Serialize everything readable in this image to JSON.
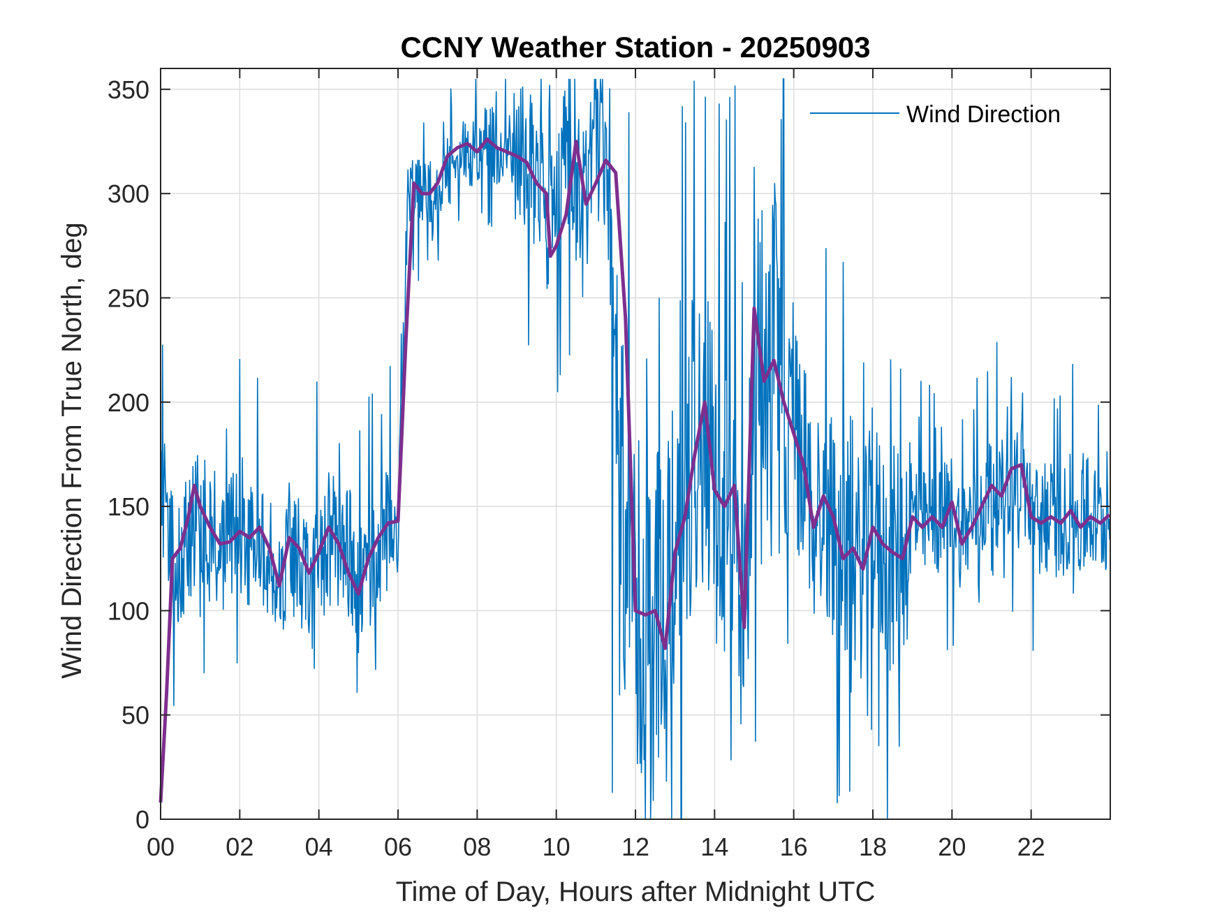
{
  "chart_data": {
    "type": "line",
    "title": "CCNY Weather Station - 20250903",
    "xlabel": "Time of Day, Hours after Midnight UTC",
    "ylabel": "Wind Direction From True North, deg",
    "xlim": [
      0,
      24
    ],
    "ylim": [
      0,
      360
    ],
    "x_ticks": [
      0,
      2,
      4,
      6,
      8,
      10,
      12,
      14,
      16,
      18,
      20,
      22
    ],
    "x_tick_labels": [
      "00",
      "02",
      "04",
      "06",
      "08",
      "10",
      "12",
      "14",
      "16",
      "18",
      "20",
      "22"
    ],
    "y_ticks": [
      0,
      50,
      100,
      150,
      200,
      250,
      300,
      350
    ],
    "y_tick_labels": [
      "0",
      "50",
      "100",
      "150",
      "200",
      "250",
      "300",
      "350"
    ],
    "grid": true,
    "legend_position": "top-right",
    "series": [
      {
        "name": "Wind Direction",
        "color": "#0072BD",
        "sampling": "1-minute samples, 00:00 to 23:59 UTC (noisy raw signal)",
        "x": [
          0,
          0.25,
          0.5,
          0.75,
          1,
          1.25,
          1.5,
          1.75,
          2,
          2.25,
          2.5,
          2.75,
          3,
          3.25,
          3.5,
          3.75,
          4,
          4.25,
          4.5,
          4.75,
          5,
          5.25,
          5.5,
          5.75,
          6,
          6.25,
          6.5,
          6.75,
          7,
          7.25,
          7.5,
          7.75,
          8,
          8.25,
          8.5,
          8.75,
          9,
          9.25,
          9.5,
          9.75,
          10,
          10.25,
          10.5,
          10.75,
          11,
          11.25,
          11.5,
          11.75,
          12,
          12.25,
          12.5,
          12.75,
          13,
          13.25,
          13.5,
          13.75,
          14,
          14.25,
          14.5,
          14.75,
          15,
          15.25,
          15.5,
          15.75,
          16,
          16.25,
          16.5,
          16.75,
          17,
          17.25,
          17.5,
          17.75,
          18,
          18.25,
          18.5,
          18.75,
          19,
          19.25,
          19.5,
          19.75,
          20,
          20.25,
          20.5,
          20.75,
          21,
          21.25,
          21.5,
          21.75,
          22,
          22.25,
          22.5,
          22.75,
          23,
          23.25,
          23.5,
          23.75,
          23.98
        ],
        "values": [
          165,
          130,
          120,
          140,
          150,
          135,
          130,
          135,
          140,
          132,
          130,
          128,
          115,
          130,
          125,
          120,
          125,
          135,
          130,
          128,
          110,
          115,
          130,
          138,
          140,
          305,
          303,
          300,
          298,
          310,
          320,
          322,
          318,
          326,
          322,
          320,
          322,
          315,
          308,
          290,
          285,
          325,
          305,
          300,
          318,
          315,
          240,
          130,
          100,
          98,
          95,
          85,
          130,
          145,
          180,
          200,
          160,
          150,
          155,
          95,
          240,
          215,
          220,
          200,
          185,
          170,
          145,
          150,
          140,
          130,
          125,
          120,
          140,
          130,
          125,
          130,
          145,
          140,
          145,
          142,
          150,
          135,
          145,
          150,
          160,
          155,
          165,
          168,
          145,
          142,
          145,
          140,
          148,
          140,
          145,
          142,
          145
        ],
        "range_envelope": {
          "min": 0,
          "max": 355
        }
      },
      {
        "name": "",
        "color": "#7E2F8E",
        "description_hidden": true,
        "x": [
          0,
          0.15,
          0.3,
          0.5,
          0.7,
          0.85,
          1,
          1.25,
          1.5,
          1.75,
          2,
          2.25,
          2.5,
          2.75,
          3,
          3.25,
          3.5,
          3.75,
          4,
          4.25,
          4.5,
          4.75,
          5,
          5.25,
          5.5,
          5.75,
          6,
          6.2,
          6.4,
          6.6,
          6.8,
          7,
          7.25,
          7.5,
          7.75,
          8,
          8.25,
          8.5,
          8.75,
          9,
          9.25,
          9.5,
          9.75,
          9.85,
          10,
          10.25,
          10.5,
          10.75,
          11,
          11.25,
          11.5,
          11.75,
          12,
          12.25,
          12.5,
          12.75,
          13,
          13.25,
          13.5,
          13.75,
          14,
          14.25,
          14.5,
          14.75,
          15,
          15.25,
          15.5,
          15.75,
          16,
          16.25,
          16.5,
          16.75,
          17,
          17.25,
          17.5,
          17.75,
          18,
          18.25,
          18.5,
          18.75,
          19,
          19.25,
          19.5,
          19.75,
          20,
          20.25,
          20.5,
          20.75,
          21,
          21.25,
          21.5,
          21.75,
          22,
          22.25,
          22.5,
          22.75,
          23,
          23.25,
          23.5,
          23.75,
          23.98
        ],
        "values": [
          8,
          60,
          125,
          130,
          145,
          160,
          150,
          140,
          132,
          133,
          138,
          135,
          140,
          130,
          112,
          135,
          130,
          118,
          128,
          140,
          132,
          118,
          108,
          125,
          135,
          142,
          143,
          230,
          305,
          300,
          300,
          305,
          318,
          322,
          324,
          320,
          326,
          322,
          320,
          318,
          315,
          305,
          300,
          270,
          275,
          290,
          325,
          295,
          305,
          316,
          310,
          240,
          100,
          98,
          100,
          82,
          128,
          145,
          175,
          200,
          158,
          150,
          160,
          92,
          245,
          210,
          220,
          200,
          185,
          170,
          140,
          155,
          145,
          125,
          130,
          120,
          140,
          132,
          128,
          125,
          145,
          140,
          145,
          140,
          152,
          132,
          140,
          150,
          160,
          155,
          168,
          170,
          145,
          142,
          145,
          142,
          148,
          140,
          145,
          142,
          146
        ]
      }
    ]
  }
}
